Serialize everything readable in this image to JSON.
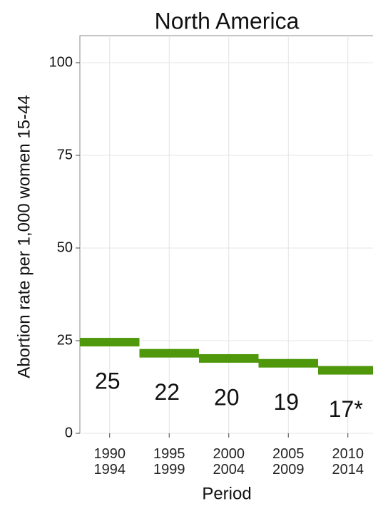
{
  "chart_data": {
    "type": "step",
    "title": "North America",
    "x_label": "Period",
    "y_label": "Abortion rate per 1,000 women 15-44",
    "categories": [
      "1990\n1994",
      "1995\n1999",
      "2000\n2004",
      "2005\n2009",
      "2010\n2014"
    ],
    "values": [
      24.6,
      21.6,
      20.2,
      18.9,
      17.0
    ],
    "value_labels": [
      "25",
      "22",
      "20",
      "19",
      "17*"
    ],
    "color": "#4f970b",
    "ylim": [
      0,
      100
    ],
    "yticks": [
      0,
      25,
      50,
      75,
      100
    ],
    "grid": true
  }
}
